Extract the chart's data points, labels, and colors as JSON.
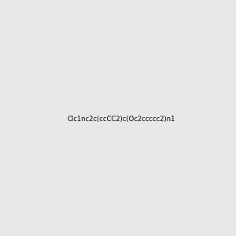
{
  "smiles": "Clc1nc2c(ccCC2)c(Oc2ccccc2)n1",
  "title": "",
  "bg_color": "#e8e8e8",
  "bond_color": "#000000",
  "N_color": "#0000ff",
  "O_color": "#ff0000",
  "Cl_color": "#00cc00",
  "img_size": [
    300,
    300
  ],
  "dpi": 100
}
